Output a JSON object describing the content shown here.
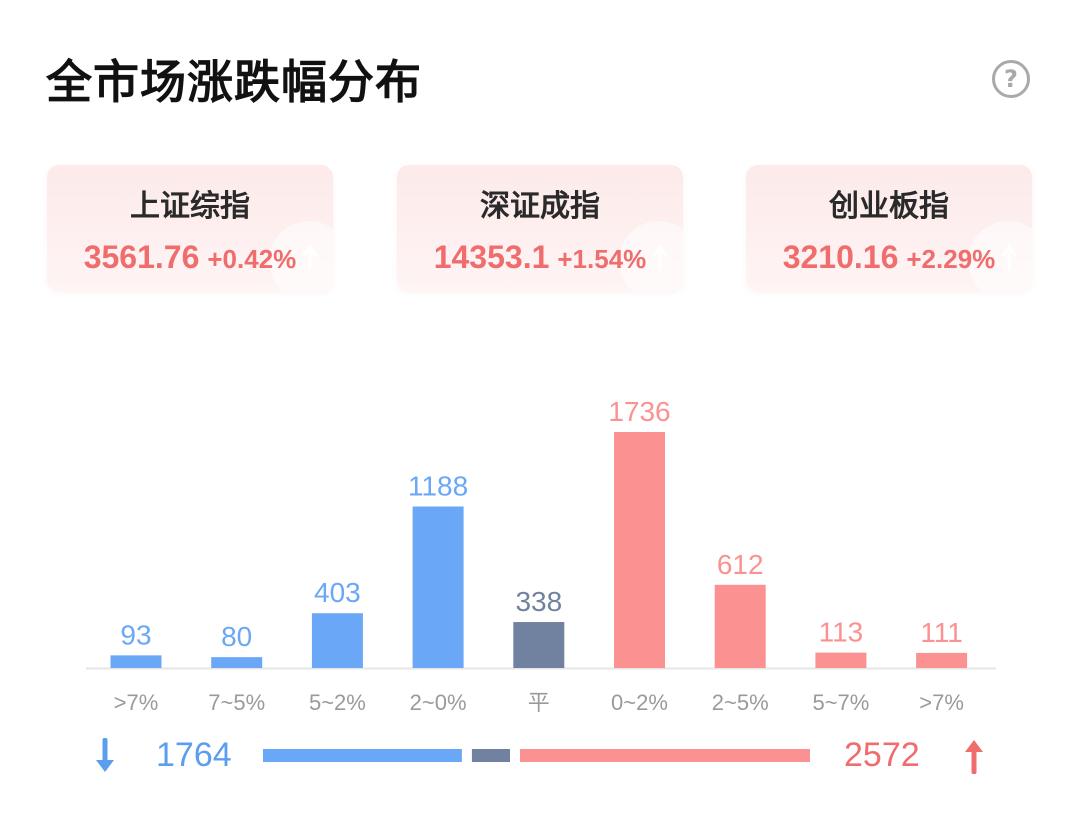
{
  "title": "全市场涨跌幅分布",
  "help_icon": "?",
  "indices": [
    {
      "name": "上证综指",
      "value": "3561.76",
      "change": "+0.42%"
    },
    {
      "name": "深证成指",
      "value": "14353.1",
      "change": "+1.54%"
    },
    {
      "name": "创业板指",
      "value": "3210.16",
      "change": "+2.29%"
    }
  ],
  "chart_data": {
    "type": "bar",
    "categories": [
      ">7%",
      "7~5%",
      "5~2%",
      "2~0%",
      "平",
      "0~2%",
      "2~5%",
      "5~7%",
      ">7%"
    ],
    "values": [
      93,
      80,
      403,
      1188,
      338,
      1736,
      612,
      113,
      111
    ],
    "groups": [
      "down",
      "down",
      "down",
      "down",
      "flat",
      "up",
      "up",
      "up",
      "up"
    ],
    "colors": {
      "down": "#6aa8f7",
      "flat": "#7082a0",
      "up": "#fc9191"
    }
  },
  "summary": {
    "down_count": "1764",
    "up_count": "2572",
    "flat_count": 338,
    "down_icon": "arrow-down-icon",
    "up_icon": "arrow-up-icon"
  },
  "colors": {
    "up": "#f06d6d",
    "down": "#5b9ef0"
  }
}
